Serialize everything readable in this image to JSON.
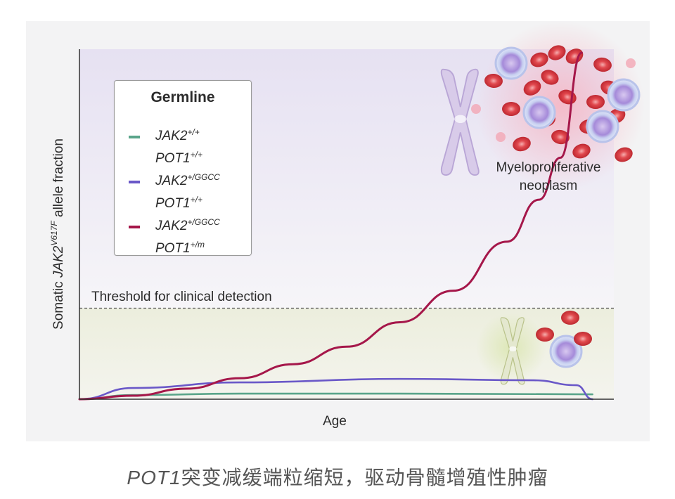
{
  "chart_data": {
    "type": "line",
    "xlabel": "Age",
    "ylabel_parts": {
      "prefix": "Somatic ",
      "gene": "JAK2",
      "superscript": "V617F",
      "suffix": " allele fraction"
    },
    "threshold": {
      "label": "Threshold for clinical detection",
      "y": 0.26
    },
    "annotation": {
      "line1": "Myeloproliferative",
      "line2": "neoplasm"
    },
    "legend": {
      "title": "Germline",
      "placement": "top-left",
      "entries": [
        {
          "color": "#5aa58a",
          "line1_base": "JAK2",
          "line1_sup": "+/+",
          "line2_base": "POT1",
          "line2_sup": "+/+"
        },
        {
          "color": "#6a58c8",
          "line1_base": "JAK2",
          "line1_sup": "+/GGCC",
          "line2_base": "POT1",
          "line2_sup": "+/+"
        },
        {
          "color": "#a5174a",
          "line1_base": "JAK2",
          "line1_sup": "+/GGCC",
          "line2_base": "POT1",
          "line2_sup": "+/m"
        }
      ]
    },
    "xlim": [
      0,
      1
    ],
    "ylim": [
      0,
      1
    ],
    "series": [
      {
        "color": "#5aa58a",
        "x": [
          0.0,
          0.1,
          0.3,
          0.6,
          0.96
        ],
        "y": [
          0.0,
          0.012,
          0.016,
          0.016,
          0.014
        ]
      },
      {
        "color": "#6a58c8",
        "x": [
          0.0,
          0.1,
          0.3,
          0.6,
          0.85,
          0.93,
          0.96
        ],
        "y": [
          0.0,
          0.032,
          0.048,
          0.058,
          0.054,
          0.04,
          0.0
        ]
      },
      {
        "color": "#a5174a",
        "x": [
          0.0,
          0.1,
          0.2,
          0.3,
          0.4,
          0.5,
          0.6,
          0.7,
          0.8,
          0.86,
          0.9,
          0.94
        ],
        "y": [
          0.0,
          0.01,
          0.03,
          0.06,
          0.1,
          0.15,
          0.22,
          0.31,
          0.45,
          0.57,
          0.69,
          0.99
        ]
      }
    ],
    "grid": false
  },
  "caption": {
    "italic_part": "POT1",
    "rest": "突变减缓端粒缩短，驱动骨髓增殖性肿瘤"
  }
}
